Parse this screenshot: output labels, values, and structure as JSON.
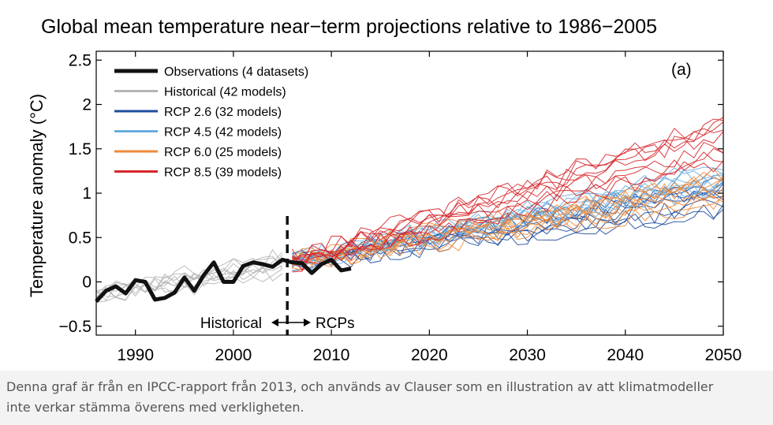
{
  "chart_data": {
    "type": "line",
    "title": "Global mean temperature near−term projections relative to 1986−2005",
    "ylabel": "Temperature anomaly (°C)",
    "xlabel": "",
    "panel_label": "(a)",
    "xlim": [
      1986,
      2050
    ],
    "ylim": [
      -0.6,
      2.6
    ],
    "x_ticks": [
      1990,
      2000,
      2010,
      2020,
      2030,
      2040,
      2050
    ],
    "y_ticks": [
      -0.5,
      0,
      0.5,
      1,
      1.5,
      2,
      2.5
    ],
    "y_tick_labels": [
      "−0.5",
      "0",
      "0.5",
      "1",
      "1.5",
      "2",
      "2.5"
    ],
    "divider_year": 2005.5,
    "annotation": {
      "left": "Historical",
      "right": "RCPs"
    },
    "legend_position": "top-left",
    "grid": false,
    "series": [
      {
        "name": "Observations (4 datasets)",
        "color": "#111111",
        "kind": "observations",
        "x": [
          1986,
          1987,
          1988,
          1989,
          1990,
          1991,
          1992,
          1993,
          1994,
          1995,
          1996,
          1997,
          1998,
          1999,
          2000,
          2001,
          2002,
          2003,
          2004,
          2005,
          2006,
          2007,
          2008,
          2009,
          2010,
          2011,
          2012
        ],
        "y": [
          -0.22,
          -0.1,
          -0.05,
          -0.13,
          0.02,
          0.0,
          -0.2,
          -0.18,
          -0.12,
          0.05,
          -0.1,
          0.08,
          0.22,
          0.0,
          0.0,
          0.18,
          0.22,
          0.2,
          0.17,
          0.25,
          0.22,
          0.21,
          0.1,
          0.2,
          0.25,
          0.13,
          0.15
        ]
      },
      {
        "name": "Historical (42 models)",
        "color": "#b5b5b5",
        "kind": "historical",
        "x_range": [
          1986,
          2005
        ],
        "mean_start": -0.15,
        "mean_end": 0.2,
        "spread": 0.22
      },
      {
        "name": "RCP 2.6 (32 models)",
        "color": "#1f4e9e",
        "kind": "projection",
        "x_range": [
          2006,
          2050
        ],
        "mean_start": 0.22,
        "mean_end": 0.95,
        "spread": 0.35
      },
      {
        "name": "RCP 4.5 (42 models)",
        "color": "#6aaee0",
        "kind": "projection",
        "x_range": [
          2006,
          2050
        ],
        "mean_start": 0.22,
        "mean_end": 1.15,
        "spread": 0.4
      },
      {
        "name": "RCP 6.0 (25 models)",
        "color": "#ef8a3a",
        "kind": "projection",
        "x_range": [
          2006,
          2050
        ],
        "mean_start": 0.22,
        "mean_end": 1.05,
        "spread": 0.35
      },
      {
        "name": "RCP 8.5 (39 models)",
        "color": "#d7262b",
        "kind": "projection",
        "x_range": [
          2006,
          2050
        ],
        "mean_start": 0.22,
        "mean_end": 1.6,
        "spread": 0.45
      }
    ]
  },
  "caption": "Denna graf är från en IPCC-rapport från 2013, och används av Clauser som en illustration av att klimatmodeller inte verkar stämma överens med verkligheten."
}
